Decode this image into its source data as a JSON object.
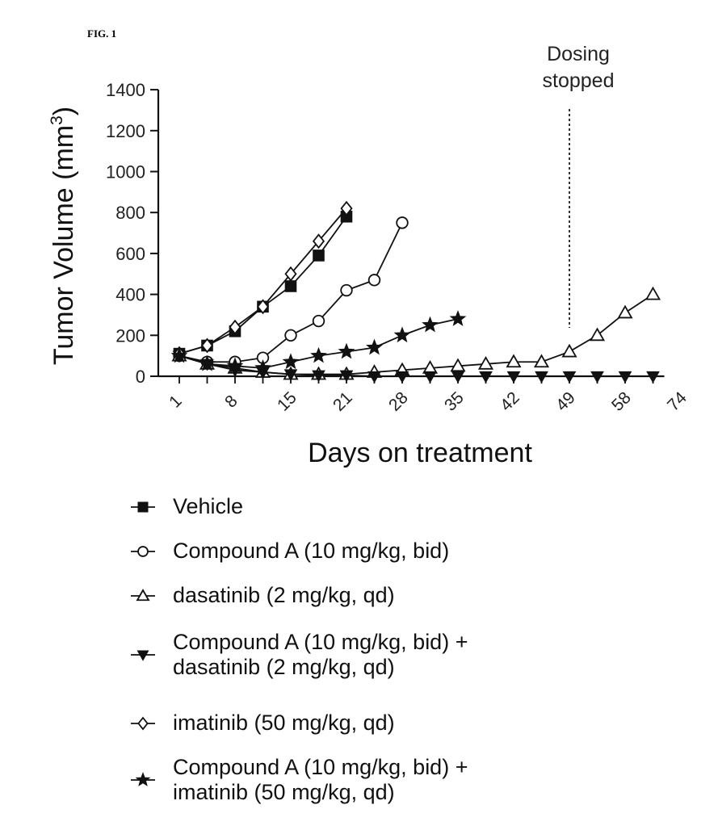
{
  "figure_label": "FIG. 1",
  "chart_data": {
    "type": "line",
    "title": "",
    "xlabel": "Days on treatment",
    "ylabel": "Tumor Volume (mm3)",
    "ylabel_main": "Tumor Volume (mm",
    "ylabel_sup": "3",
    "ylabel_close": ")",
    "ylim": [
      0,
      1400
    ],
    "yticks": [
      0,
      200,
      400,
      600,
      800,
      1000,
      1200,
      1400
    ],
    "x_positions": 18,
    "xtick_labels": [
      "1",
      "8",
      "15",
      "21",
      "28",
      "35",
      "42",
      "49",
      "58",
      "74"
    ],
    "grid": false,
    "legend_position": "below",
    "annotation": {
      "text_line1": "Dosing",
      "text_line2": "stopped",
      "x_index": 14
    },
    "series": [
      {
        "name": "Vehicle",
        "marker": "square",
        "filled": true,
        "x_index": [
          0,
          1,
          2,
          3,
          4,
          5,
          6
        ],
        "values": [
          110,
          150,
          220,
          340,
          440,
          590,
          780
        ]
      },
      {
        "name": "Compound A (10 mg/kg, bid)",
        "marker": "circle",
        "filled": false,
        "x_index": [
          0,
          1,
          2,
          3,
          4,
          5,
          6,
          7,
          8
        ],
        "values": [
          100,
          70,
          70,
          90,
          200,
          270,
          420,
          470,
          750
        ]
      },
      {
        "name": "dasatinib (2 mg/kg, qd)",
        "marker": "triangle",
        "filled": false,
        "x_index": [
          0,
          1,
          2,
          3,
          4,
          5,
          6,
          7,
          8,
          9,
          10,
          11,
          12,
          13,
          14,
          15,
          16,
          17
        ],
        "values": [
          100,
          60,
          40,
          20,
          10,
          10,
          10,
          20,
          30,
          40,
          50,
          60,
          70,
          70,
          120,
          200,
          310,
          400
        ]
      },
      {
        "name": "Compound A (10 mg/kg, bid) +\ndasatinib (2 mg/kg, qd)",
        "marker": "triangle-down",
        "filled": true,
        "x_index": [
          0,
          1,
          2,
          3,
          4,
          5,
          6,
          7,
          8,
          9,
          10,
          11,
          12,
          13,
          14,
          15,
          16,
          17
        ],
        "values": [
          100,
          60,
          30,
          20,
          10,
          5,
          5,
          0,
          0,
          0,
          0,
          0,
          0,
          0,
          0,
          0,
          0,
          0
        ]
      },
      {
        "name": "imatinib (50 mg/kg, qd)",
        "marker": "diamond",
        "filled": false,
        "x_index": [
          0,
          1,
          2,
          3,
          4,
          5,
          6
        ],
        "values": [
          110,
          150,
          240,
          340,
          500,
          660,
          820
        ]
      },
      {
        "name": "Compound A (10 mg/kg, bid) +\nimatinib (50 mg/kg, qd)",
        "marker": "star",
        "filled": true,
        "x_index": [
          0,
          1,
          2,
          3,
          4,
          5,
          6,
          7,
          8,
          9,
          10
        ],
        "values": [
          100,
          60,
          50,
          40,
          70,
          100,
          120,
          140,
          200,
          250,
          280
        ]
      }
    ]
  }
}
